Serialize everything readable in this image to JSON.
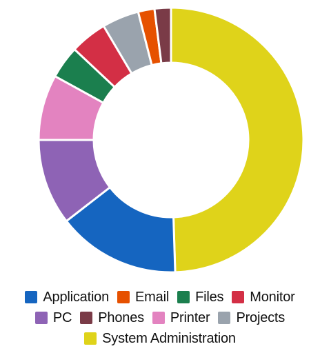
{
  "chart_data": {
    "type": "pie",
    "donut": true,
    "title": "",
    "legend_position": "bottom",
    "categories": [
      "Application",
      "Email",
      "Files",
      "Monitor",
      "PC",
      "Phones",
      "Printer",
      "Projects",
      "System Administration"
    ],
    "values": [
      15,
      2,
      4,
      4.5,
      10.5,
      2,
      8,
      4.5,
      49.5
    ],
    "colors": [
      "#1565c0",
      "#e65100",
      "#1b7f4e",
      "#d32f45",
      "#8e63b5",
      "#7a3b47",
      "#e383c0",
      "#9aa3ad",
      "#dfd31a"
    ],
    "draw_order": [
      8,
      0,
      4,
      6,
      2,
      3,
      7,
      1,
      5
    ]
  }
}
